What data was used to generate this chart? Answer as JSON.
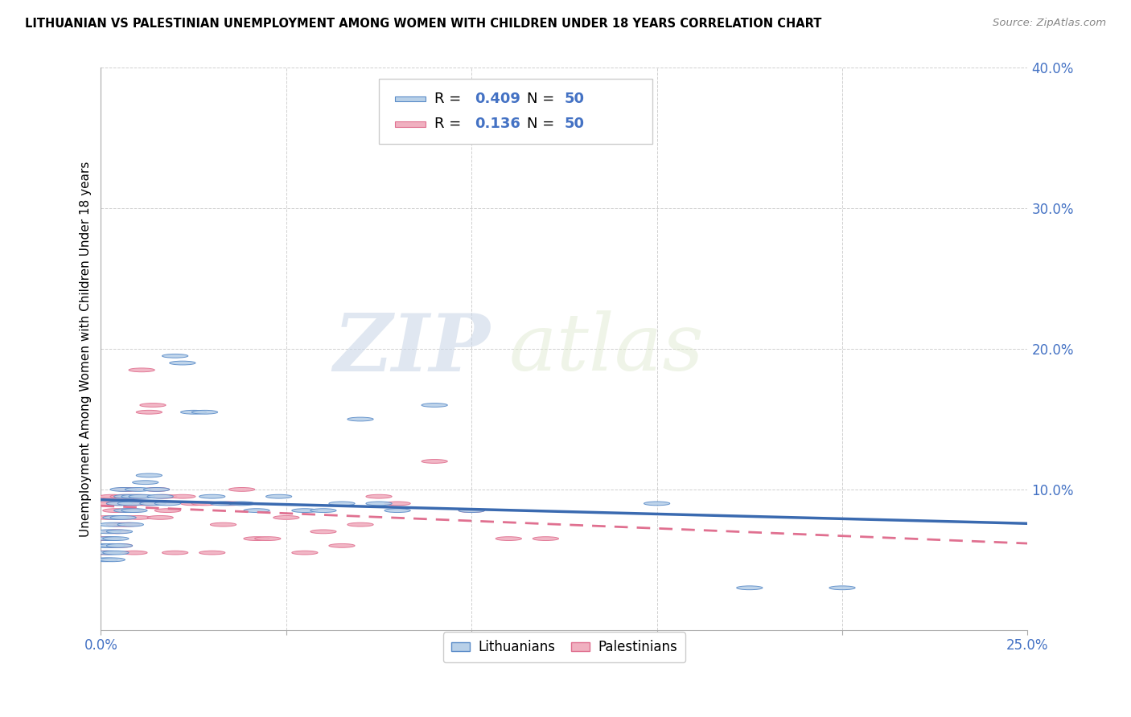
{
  "title": "LITHUANIAN VS PALESTINIAN UNEMPLOYMENT AMONG WOMEN WITH CHILDREN UNDER 18 YEARS CORRELATION CHART",
  "source": "Source: ZipAtlas.com",
  "ylabel": "Unemployment Among Women with Children Under 18 years",
  "xlim": [
    0.0,
    0.25
  ],
  "ylim": [
    0.0,
    0.4
  ],
  "xticks": [
    0.0,
    0.05,
    0.1,
    0.15,
    0.2,
    0.25
  ],
  "yticks": [
    0.0,
    0.1,
    0.2,
    0.3,
    0.4
  ],
  "r_lithuanian": 0.409,
  "r_palestinian": 0.136,
  "n_lithuanian": 50,
  "n_palestinian": 50,
  "color_lithuanian_fill": "#b8d0e8",
  "color_lithuanian_edge": "#5b8cc8",
  "color_palestinian_fill": "#f0b0c0",
  "color_palestinian_edge": "#e07090",
  "color_line_lithuanian": "#3a6ab0",
  "color_line_palestinian": "#e07090",
  "watermark_zip": "ZIP",
  "watermark_atlas": "atlas",
  "lithuanian_x": [
    0.001,
    0.001,
    0.002,
    0.002,
    0.002,
    0.003,
    0.003,
    0.003,
    0.004,
    0.004,
    0.004,
    0.005,
    0.005,
    0.005,
    0.006,
    0.006,
    0.007,
    0.007,
    0.008,
    0.008,
    0.009,
    0.009,
    0.01,
    0.011,
    0.012,
    0.013,
    0.014,
    0.015,
    0.016,
    0.018,
    0.02,
    0.022,
    0.025,
    0.028,
    0.03,
    0.033,
    0.038,
    0.042,
    0.048,
    0.055,
    0.06,
    0.065,
    0.07,
    0.075,
    0.08,
    0.09,
    0.1,
    0.15,
    0.175,
    0.2
  ],
  "lithuanian_y": [
    0.06,
    0.05,
    0.065,
    0.055,
    0.07,
    0.06,
    0.075,
    0.05,
    0.065,
    0.08,
    0.055,
    0.07,
    0.09,
    0.06,
    0.08,
    0.1,
    0.085,
    0.095,
    0.075,
    0.09,
    0.085,
    0.095,
    0.1,
    0.095,
    0.105,
    0.11,
    0.09,
    0.1,
    0.095,
    0.09,
    0.195,
    0.19,
    0.155,
    0.155,
    0.095,
    0.09,
    0.09,
    0.085,
    0.095,
    0.085,
    0.085,
    0.09,
    0.15,
    0.09,
    0.085,
    0.16,
    0.085,
    0.09,
    0.03,
    0.03
  ],
  "palestinian_x": [
    0.001,
    0.001,
    0.002,
    0.002,
    0.003,
    0.003,
    0.004,
    0.004,
    0.005,
    0.005,
    0.005,
    0.006,
    0.006,
    0.007,
    0.007,
    0.008,
    0.008,
    0.009,
    0.009,
    0.01,
    0.01,
    0.011,
    0.012,
    0.013,
    0.014,
    0.015,
    0.016,
    0.017,
    0.018,
    0.02,
    0.022,
    0.025,
    0.028,
    0.03,
    0.033,
    0.035,
    0.038,
    0.042,
    0.045,
    0.05,
    0.055,
    0.06,
    0.065,
    0.07,
    0.075,
    0.08,
    0.09,
    0.1,
    0.11,
    0.12
  ],
  "palestinian_y": [
    0.065,
    0.055,
    0.08,
    0.09,
    0.06,
    0.095,
    0.07,
    0.085,
    0.09,
    0.075,
    0.06,
    0.095,
    0.08,
    0.1,
    0.075,
    0.085,
    0.095,
    0.055,
    0.09,
    0.08,
    0.095,
    0.185,
    0.09,
    0.155,
    0.16,
    0.1,
    0.08,
    0.095,
    0.085,
    0.055,
    0.095,
    0.09,
    0.09,
    0.055,
    0.075,
    0.09,
    0.1,
    0.065,
    0.065,
    0.08,
    0.055,
    0.07,
    0.06,
    0.075,
    0.095,
    0.09,
    0.12,
    0.085,
    0.065,
    0.065
  ]
}
